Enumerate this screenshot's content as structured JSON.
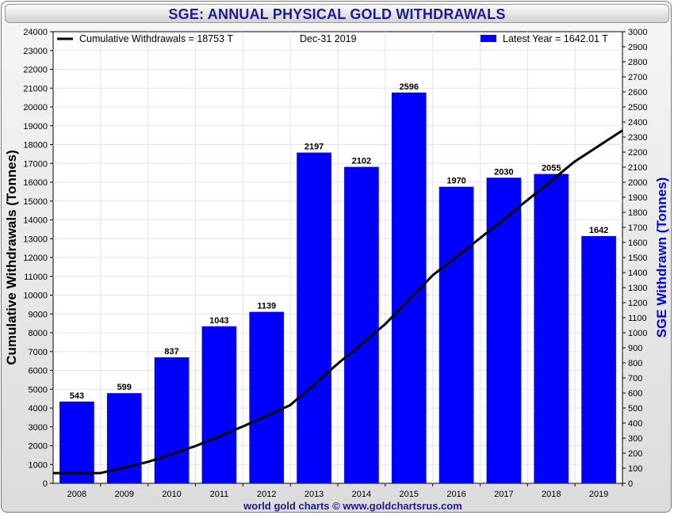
{
  "title": "SGE: ANNUAL PHYSICAL GOLD WITHDRAWALS",
  "footer": "world gold charts © www.goldchartsrus.com",
  "legend": {
    "line_label": "Cumulative Withdrawals = 18753 T",
    "date_label": "Dec-31  2019",
    "bar_label": "Latest Year = 1642.01 T"
  },
  "colors": {
    "bar": "#0000ff",
    "line": "#000000",
    "title": "#1a1a9a",
    "right_axis_label": "#0000dd"
  },
  "chart_data": {
    "type": "bar",
    "categories": [
      "2008",
      "2009",
      "2010",
      "2011",
      "2012",
      "2013",
      "2014",
      "2015",
      "2016",
      "2017",
      "2018",
      "2019"
    ],
    "series": [
      {
        "name": "Latest Year",
        "type": "bar",
        "axis": "right",
        "values": [
          543,
          599,
          837,
          1043,
          1139,
          2197,
          2102,
          2596,
          1970,
          2030,
          2055,
          1642
        ]
      },
      {
        "name": "Cumulative Withdrawals",
        "type": "line",
        "axis": "left",
        "values": [
          543,
          1142,
          1979,
          3022,
          4161,
          6358,
          8460,
          11056,
          13026,
          15056,
          17111,
          18753
        ]
      }
    ],
    "ylabel_left": "Cumulative Withdrawals (Tonnes)",
    "ylabel_right": "SGE Withdrawn (Tonnes)",
    "ylim_left": [
      0,
      24000
    ],
    "ylim_right": [
      0,
      3000
    ],
    "ytick_step_left": 1000,
    "ytick_step_right": 100,
    "grid": true,
    "legend_placement": "top"
  }
}
